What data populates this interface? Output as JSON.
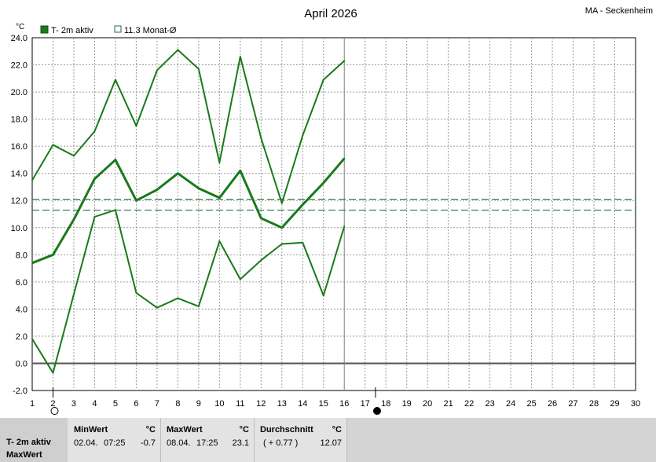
{
  "header": {
    "title": "April 2026",
    "station": "MA - Seckenheim"
  },
  "legend": {
    "series_label": "T- 2m aktiv",
    "average_label": "11.3 Monat-Ø"
  },
  "colors": {
    "series": "#1a7a1a",
    "grid": "#9a9a9a",
    "average": "#1f6e3d",
    "panel": "#d4d4d4"
  },
  "chart_data": {
    "type": "line",
    "xlim": [
      1,
      30
    ],
    "ylim": [
      -2,
      24
    ],
    "y_unit": "°C",
    "y_ticks": [
      "-2.0",
      "0.0",
      "2.0",
      "4.0",
      "6.0",
      "8.0",
      "10.0",
      "12.0",
      "14.0",
      "16.0",
      "18.0",
      "20.0",
      "22.0",
      "24.0"
    ],
    "x_ticks": [
      "1",
      "2",
      "3",
      "4",
      "5",
      "6",
      "7",
      "8",
      "9",
      "10",
      "11",
      "12",
      "13",
      "14",
      "15",
      "16",
      "17",
      "18",
      "19",
      "20",
      "21",
      "22",
      "23",
      "24",
      "25",
      "26",
      "27",
      "28",
      "29",
      "30"
    ],
    "x": [
      1,
      2,
      3,
      4,
      5,
      6,
      7,
      8,
      9,
      10,
      11,
      12,
      13,
      14,
      15,
      16
    ],
    "series": [
      {
        "role": "max",
        "values": [
          13.5,
          16.1,
          15.3,
          17.1,
          20.9,
          17.5,
          21.6,
          23.1,
          21.7,
          14.8,
          22.6,
          16.6,
          11.8,
          16.8,
          20.9,
          22.3
        ]
      },
      {
        "role": "mean",
        "values": [
          7.4,
          8.0,
          10.6,
          13.6,
          15.0,
          12.0,
          12.8,
          14.0,
          12.9,
          12.2,
          14.2,
          10.7,
          10.0,
          11.7,
          13.3,
          15.1
        ]
      },
      {
        "role": "min",
        "values": [
          1.8,
          -0.7,
          5.1,
          10.8,
          11.3,
          5.2,
          4.1,
          4.8,
          4.2,
          9.0,
          6.2,
          7.6,
          8.8,
          8.9,
          5.0,
          10.1
        ]
      }
    ],
    "reference_lines": [
      12.1,
      11.3
    ],
    "current_day": 16,
    "moon_phases": [
      {
        "day": 2,
        "phase": "full"
      },
      {
        "day": 17.5,
        "phase": "new"
      }
    ]
  },
  "stats": {
    "row_label_1": "T- 2m aktiv",
    "row_label_2": "MaxWert",
    "min": {
      "header": "MinWert",
      "unit": "°C",
      "date": "02.04.",
      "time": "07:25",
      "value": "-0.7"
    },
    "max": {
      "header": "MaxWert",
      "unit": "°C",
      "date": "08.04.",
      "time": "17:25",
      "value": "23.1"
    },
    "avg": {
      "header": "Durchschnitt",
      "unit": "°C",
      "delta": "( + 0.77 )",
      "value": "12.07"
    }
  }
}
